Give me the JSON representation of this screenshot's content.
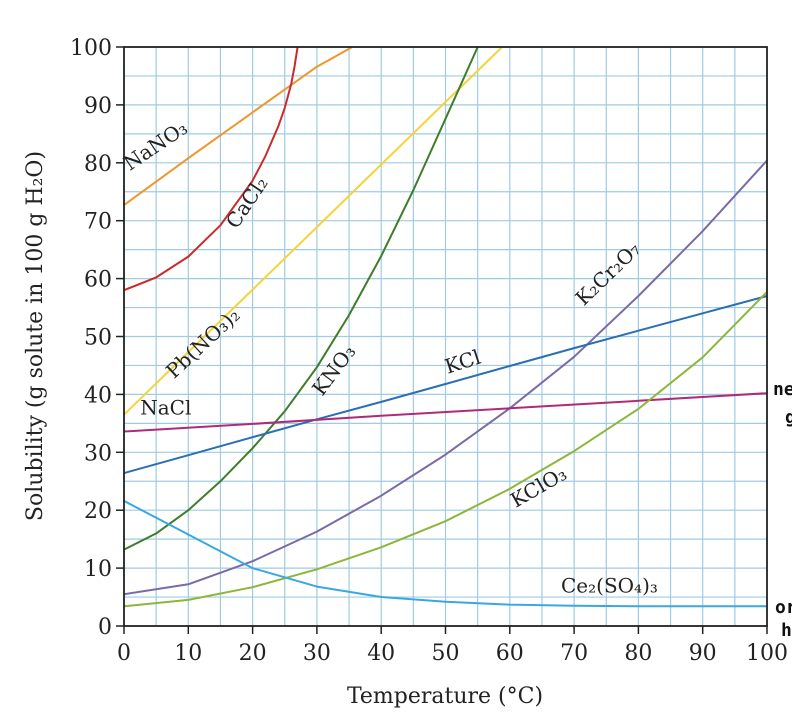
{
  "chart_data": {
    "type": "line",
    "title": "",
    "xlabel": "Temperature (°C)",
    "ylabel": "Solubility (g solute in 100 g H₂O)",
    "xlim": [
      0,
      100
    ],
    "ylim": [
      0,
      100
    ],
    "xticks": [
      0,
      10,
      20,
      30,
      40,
      50,
      60,
      70,
      80,
      90,
      100
    ],
    "yticks": [
      0,
      10,
      20,
      30,
      40,
      50,
      60,
      70,
      80,
      90,
      100
    ],
    "grid": true,
    "colors": {
      "grid": "#9ecbe6",
      "axis": "#222222"
    },
    "series": [
      {
        "name": "NaNO₃",
        "color": "#f0962a",
        "points": [
          [
            0,
            72.7
          ],
          [
            10,
            80.8
          ],
          [
            20,
            88.7
          ],
          [
            30,
            96.6
          ],
          [
            35.5,
            100
          ]
        ]
      },
      {
        "name": "CaCl₂",
        "color": "#cc2a2a",
        "points": [
          [
            0,
            58
          ],
          [
            5,
            60.2
          ],
          [
            10,
            63.8
          ],
          [
            15,
            69.2
          ],
          [
            20,
            76.9
          ],
          [
            22,
            81.2
          ],
          [
            24,
            86.3
          ],
          [
            25,
            89.5
          ],
          [
            26,
            93.6
          ],
          [
            26.5,
            96.5
          ],
          [
            27,
            100
          ]
        ]
      },
      {
        "name": "Pb(NO₃)₂",
        "color": "#f5d43a",
        "points": [
          [
            0,
            36.5
          ],
          [
            10,
            47.3
          ],
          [
            20,
            58.1
          ],
          [
            30,
            68.9
          ],
          [
            40,
            79.7
          ],
          [
            50,
            90.5
          ],
          [
            58.8,
            100
          ]
        ]
      },
      {
        "name": "KNO₃",
        "color": "#3f7d28",
        "points": [
          [
            0,
            13.2
          ],
          [
            5,
            16
          ],
          [
            10,
            20
          ],
          [
            15,
            25
          ],
          [
            20,
            30.7
          ],
          [
            25,
            37.1
          ],
          [
            30,
            44.7
          ],
          [
            35,
            53.7
          ],
          [
            40,
            63.9
          ],
          [
            45,
            75.3
          ],
          [
            50,
            87.6
          ],
          [
            55,
            100
          ]
        ]
      },
      {
        "name": "K₂Cr₂O₇",
        "color": "#7a6aa8",
        "points": [
          [
            0,
            5.5
          ],
          [
            10,
            7.2
          ],
          [
            20,
            11.2
          ],
          [
            30,
            16.3
          ],
          [
            40,
            22.5
          ],
          [
            50,
            29.6
          ],
          [
            60,
            37.6
          ],
          [
            70,
            46.5
          ],
          [
            80,
            57
          ],
          [
            90,
            68.2
          ],
          [
            100,
            80.4
          ]
        ]
      },
      {
        "name": "KCl",
        "color": "#2a6eb6",
        "points": [
          [
            0,
            26.4
          ],
          [
            10,
            29.5
          ],
          [
            20,
            32.6
          ],
          [
            30,
            35.7
          ],
          [
            40,
            38.7
          ],
          [
            50,
            41.8
          ],
          [
            60,
            44.9
          ],
          [
            70,
            48
          ],
          [
            80,
            51
          ],
          [
            90,
            54
          ],
          [
            100,
            57
          ]
        ]
      },
      {
        "name": "NaCl",
        "color": "#b02a78",
        "points": [
          [
            0,
            33.6
          ],
          [
            20,
            34.9
          ],
          [
            40,
            36.3
          ],
          [
            60,
            37.6
          ],
          [
            80,
            38.9
          ],
          [
            100,
            40.2
          ]
        ]
      },
      {
        "name": "KClO₃",
        "color": "#8db63a",
        "points": [
          [
            0,
            3.4
          ],
          [
            10,
            4.5
          ],
          [
            20,
            6.7
          ],
          [
            30,
            9.8
          ],
          [
            40,
            13.6
          ],
          [
            50,
            18.1
          ],
          [
            60,
            23.7
          ],
          [
            70,
            30.2
          ],
          [
            80,
            37.5
          ],
          [
            90,
            46.4
          ],
          [
            100,
            57.7
          ]
        ]
      },
      {
        "name": "Ce₂(SO₄)₃",
        "color": "#3aa8e0",
        "points": [
          [
            0,
            21.6
          ],
          [
            10,
            15.8
          ],
          [
            20,
            10
          ],
          [
            30,
            6.8
          ],
          [
            40,
            5
          ],
          [
            50,
            4.2
          ],
          [
            60,
            3.7
          ],
          [
            70,
            3.5
          ],
          [
            80,
            3.4
          ],
          [
            90,
            3.4
          ],
          [
            100,
            3.4
          ]
        ]
      }
    ],
    "curve_labels": [
      {
        "text": "NaNO₃",
        "x": 5.5,
        "y": 82,
        "angle": -34
      },
      {
        "text": "CaCl₂",
        "x": 20,
        "y": 72.5,
        "angle": -56
      },
      {
        "text": "Pb(NO₃)₂",
        "x": 13,
        "y": 48,
        "angle": -43
      },
      {
        "text": "KNO₃",
        "x": 33.5,
        "y": 43.5,
        "angle": -53
      },
      {
        "text": "K₂Cr₂O₇",
        "x": 76,
        "y": 60,
        "angle": -44
      },
      {
        "text": "KCl",
        "x": 53,
        "y": 44.5,
        "angle": -18
      },
      {
        "text": "NaCl",
        "x": 6.5,
        "y": 36.5,
        "angle": 0
      },
      {
        "text": "KClO₃",
        "x": 65,
        "y": 23,
        "angle": -30
      },
      {
        "text": "Ce₂(SO₄)₃",
        "x": 75.5,
        "y": 5.8,
        "angle": 0
      }
    ]
  }
}
